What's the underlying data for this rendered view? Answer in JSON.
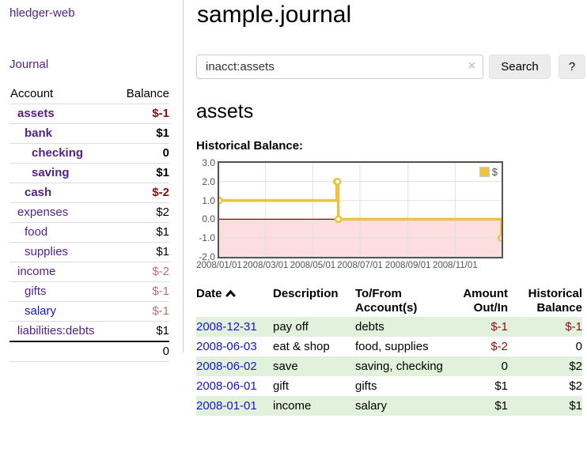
{
  "sidebar": {
    "brand": "hledger-web",
    "journal_link": "Journal",
    "accounts_table": {
      "headers": {
        "account": "Account",
        "balance": "Balance"
      },
      "rows": [
        {
          "name": "assets",
          "indent": 1,
          "bold": true,
          "balance": "$-1",
          "balance_class": "neg-strong"
        },
        {
          "name": "bank",
          "indent": 2,
          "bold": true,
          "balance": "$1",
          "balance_class": ""
        },
        {
          "name": "checking",
          "indent": 3,
          "bold": true,
          "balance": "0",
          "balance_class": ""
        },
        {
          "name": "saving",
          "indent": 3,
          "bold": true,
          "balance": "$1",
          "balance_class": ""
        },
        {
          "name": "cash",
          "indent": 2,
          "bold": true,
          "balance": "$-2",
          "balance_class": "neg-strong"
        },
        {
          "name": "expenses",
          "indent": 1,
          "bold": false,
          "balance": "$2",
          "balance_class": ""
        },
        {
          "name": "food",
          "indent": 2,
          "bold": false,
          "balance": "$1",
          "balance_class": ""
        },
        {
          "name": "supplies",
          "indent": 2,
          "bold": false,
          "balance": "$1",
          "balance_class": ""
        },
        {
          "name": "income",
          "indent": 1,
          "bold": false,
          "balance": "$-2",
          "balance_class": "neg-muted"
        },
        {
          "name": "gifts",
          "indent": 2,
          "bold": false,
          "balance": "$-1",
          "balance_class": "neg-muted"
        },
        {
          "name": "salary",
          "indent": 2,
          "bold": false,
          "blue": true,
          "balance": "$-1",
          "balance_class": "neg-muted"
        },
        {
          "name": "liabilities:debts",
          "indent": 1,
          "bold": false,
          "balance": "$1",
          "balance_class": ""
        }
      ],
      "total": "0"
    }
  },
  "main": {
    "title": "sample.journal",
    "search": {
      "value": "inacct:assets",
      "clear_icon": "×",
      "search_button": "Search",
      "help_button": "?"
    },
    "account_heading": "assets",
    "chart_label": "Historical Balance:"
  },
  "chart_data": {
    "type": "line",
    "step": true,
    "title": "Historical Balance",
    "series": [
      {
        "name": "$",
        "color": "#edc240",
        "points": [
          [
            "2008-01-01",
            1
          ],
          [
            "2008-06-01",
            2
          ],
          [
            "2008-06-02",
            2
          ],
          [
            "2008-06-03",
            0
          ],
          [
            "2008-12-31",
            -1
          ]
        ]
      }
    ],
    "xlim": [
      "2008-01-01",
      "2008-12-31"
    ],
    "ylim": [
      -2,
      3
    ],
    "x_tick_labels": [
      "2008/01/01",
      "2008/03/01",
      "2008/05/01",
      "2008/07/01",
      "2008/09/01",
      "2008/11/01"
    ],
    "y_tick_labels": [
      "3.0",
      "2.0",
      "1.0",
      "0.0",
      "-1.0",
      "-2.0"
    ],
    "y_ticks": [
      3,
      2,
      1,
      0,
      -1,
      -2
    ],
    "grid": true,
    "gridline_color": "#e0e0e0",
    "negative_region_fill": "#fcdede",
    "zero_line_color": "#990000",
    "legend_label": "$",
    "legend_position": "top-right"
  },
  "transactions": {
    "headers": {
      "date": "Date",
      "description": "Description",
      "accounts_line1": "To/From",
      "accounts_line2": "Account(s)",
      "amount_line1": "Amount",
      "amount_line2": "Out/In",
      "balance_line1": "Historical",
      "balance_line2": "Balance"
    },
    "rows": [
      {
        "date": "2008-12-31",
        "description": "pay off",
        "accounts": "debts",
        "amount": "$-1",
        "amount_neg": true,
        "balance": "$-1",
        "balance_neg": true,
        "striped": true
      },
      {
        "date": "2008-06-03",
        "description": "eat & shop",
        "accounts": "food, supplies",
        "amount": "$-2",
        "amount_neg": true,
        "balance": "0",
        "balance_neg": false,
        "striped": false
      },
      {
        "date": "2008-06-02",
        "description": "save",
        "accounts": "saving, checking",
        "amount": "0",
        "amount_neg": false,
        "balance": "$2",
        "balance_neg": false,
        "striped": true
      },
      {
        "date": "2008-06-01",
        "description": "gift",
        "accounts": "gifts",
        "amount": "$1",
        "amount_neg": false,
        "balance": "$2",
        "balance_neg": false,
        "striped": false
      },
      {
        "date": "2008-01-01",
        "description": "income",
        "accounts": "salary",
        "amount": "$1",
        "amount_neg": false,
        "balance": "$1",
        "balance_neg": false,
        "striped": true
      }
    ]
  }
}
